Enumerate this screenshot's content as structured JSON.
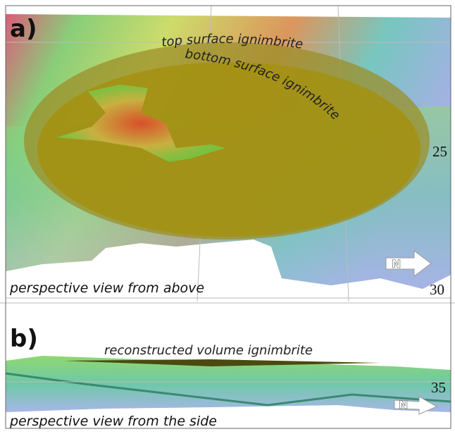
{
  "panels": [
    {
      "label": "a)",
      "surface_labels": [
        "top surface ignimbrite",
        "bottom surface ignimbrite"
      ],
      "tick_labels": [
        "25",
        "30"
      ],
      "north_label": "N",
      "caption": "perspective view from above"
    },
    {
      "label": "b)",
      "surface_labels": [
        "reconstructed volume ignimbrite"
      ],
      "tick_labels": [
        "35"
      ],
      "north_label": "N",
      "caption": "perspective view from the side"
    }
  ]
}
